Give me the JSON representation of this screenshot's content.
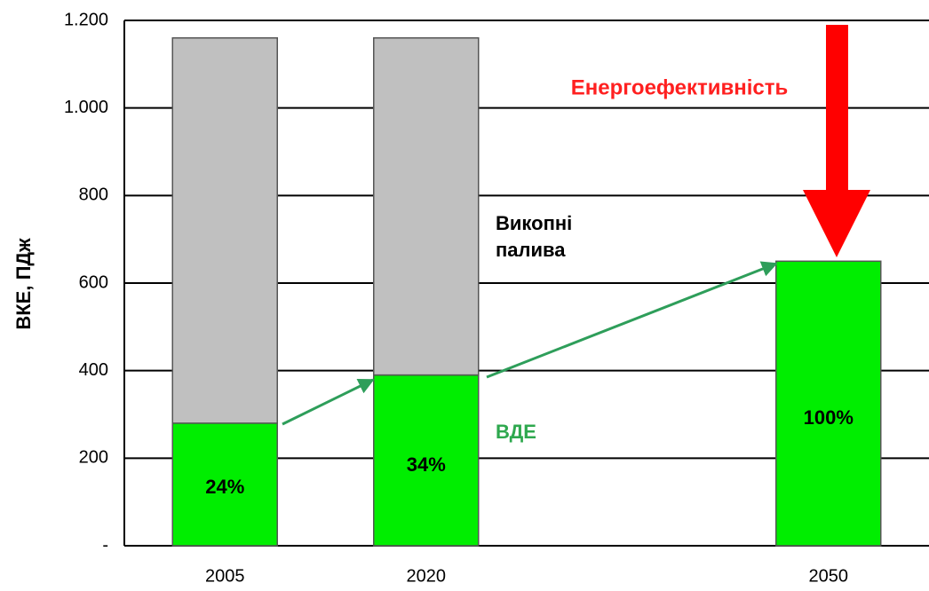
{
  "chart_data": {
    "type": "stacked_bar",
    "y_label": "ВКЕ, ПДж",
    "categories": [
      "2005",
      "2020",
      null,
      "2050"
    ],
    "series": [
      {
        "name": "ВДЕ",
        "color": "#00ee00",
        "values": [
          280,
          390,
          null,
          650
        ]
      },
      {
        "name": "Викопні палива",
        "color": "#c0c0c0",
        "values": [
          880,
          770,
          null,
          null
        ]
      }
    ],
    "share_labels": [
      "24%",
      "34%",
      null,
      "100%"
    ],
    "annotation": "Енергоефективність",
    "ylim": [
      0,
      1200
    ],
    "yticks": [
      {
        "value": 0,
        "label": "-"
      },
      200,
      400,
      600,
      800,
      {
        "value": 1000,
        "label": "1.000"
      },
      {
        "value": 1200,
        "label": "1.200"
      }
    ],
    "grid": true
  }
}
